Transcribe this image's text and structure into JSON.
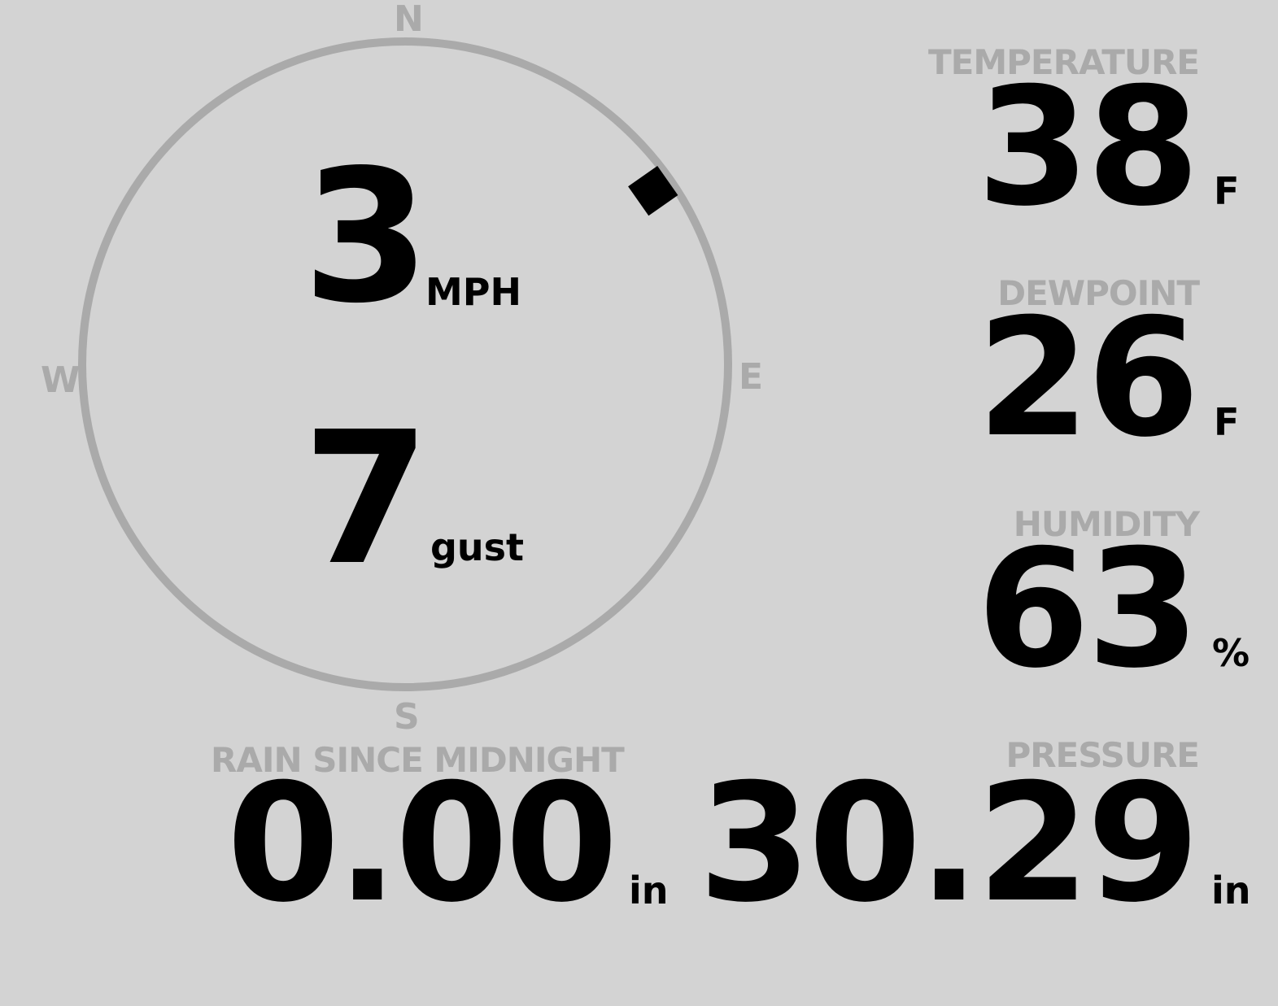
{
  "compass": {
    "north": "N",
    "east": "E",
    "south": "S",
    "west": "W",
    "wind_direction_deg": 55,
    "ring_color": "#aaaaaa"
  },
  "wind": {
    "speed": "3",
    "speed_unit": "MPH",
    "gust": "7",
    "gust_label": "gust"
  },
  "temperature": {
    "label": "TEMPERATURE",
    "value": "38",
    "unit": "F"
  },
  "dewpoint": {
    "label": "DEWPOINT",
    "value": "26",
    "unit": "F"
  },
  "humidity": {
    "label": "HUMIDITY",
    "value": "63",
    "unit": "%"
  },
  "rain": {
    "label": "RAIN SINCE MIDNIGHT",
    "value": "0.00",
    "unit": "in"
  },
  "pressure": {
    "label": "PRESSURE",
    "value": "30.29",
    "unit": "in"
  }
}
